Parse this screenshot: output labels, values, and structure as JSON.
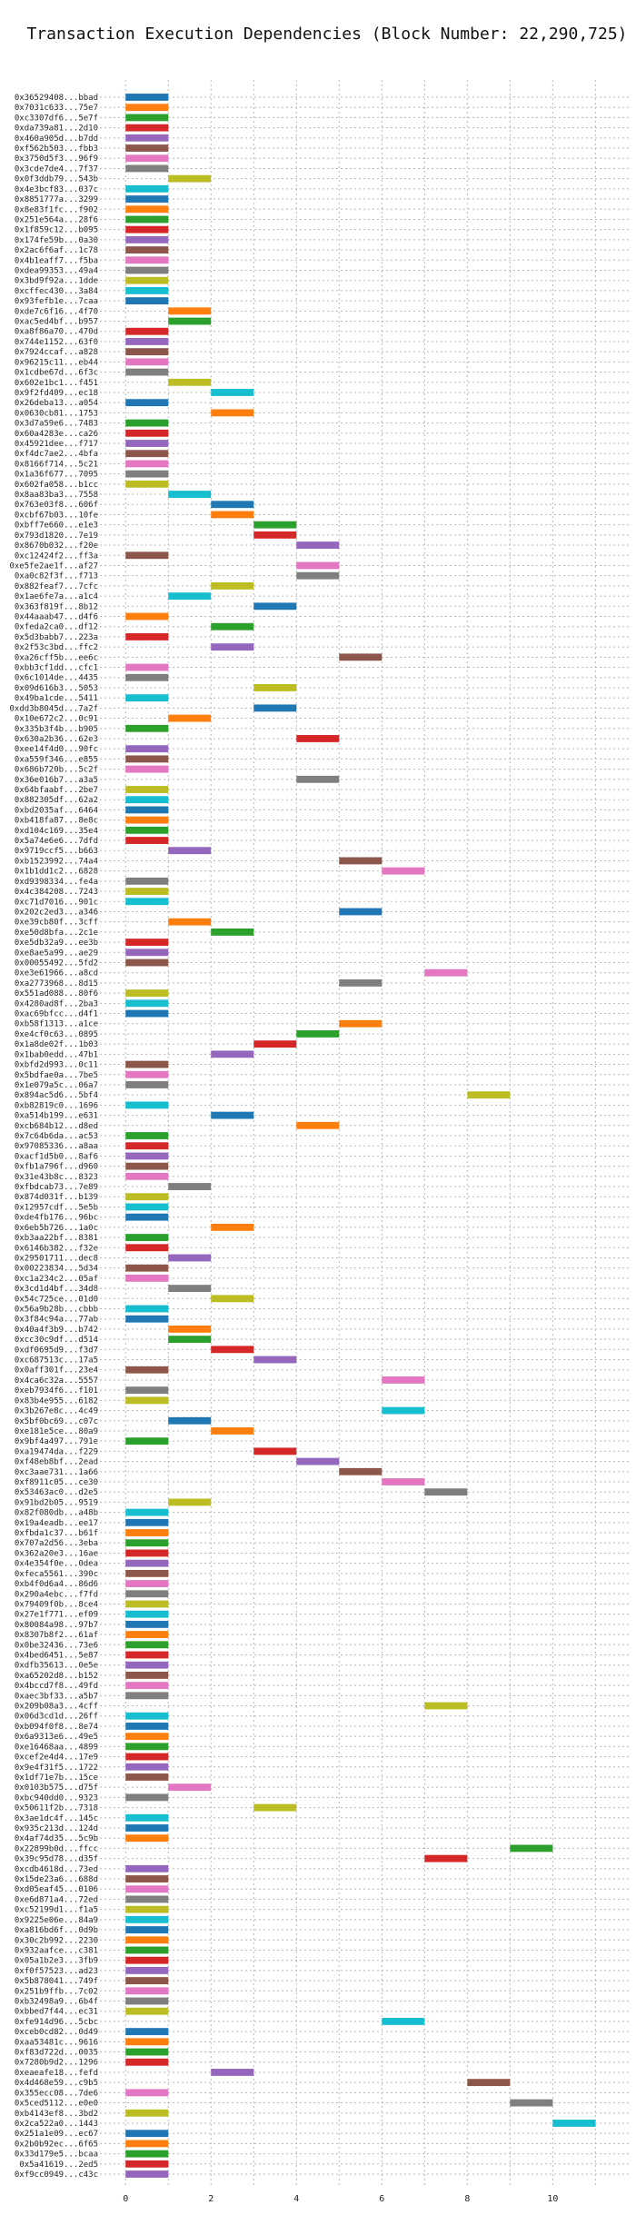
{
  "chart_data": {
    "type": "bar",
    "orientation": "horizontal-gantt",
    "title": "Transaction Execution Dependencies (Block Number: 22,290,725)",
    "xlabel": "",
    "ylabel": "",
    "xlim": [
      -0.6,
      11.8
    ],
    "xticks": [
      0,
      2,
      4,
      6,
      8,
      10
    ],
    "grid": "vertical dashed",
    "palette": [
      "#1f77b4",
      "#ff7f0e",
      "#2ca02c",
      "#d62728",
      "#9467bd",
      "#8c564b",
      "#e377c2",
      "#7f7f7f",
      "#bcbd22",
      "#17becf"
    ],
    "transactions": [
      [
        "0x36529408...bbad",
        0
      ],
      [
        "0x7031c633...75e7",
        0
      ],
      [
        "0xc3307df6...5e7f",
        0
      ],
      [
        "0xda739a81...2d10",
        0
      ],
      [
        "0x460a905d...b7dd",
        0
      ],
      [
        "0xf562b503...fbb3",
        0
      ],
      [
        "0x3750d5f3...96f9",
        0
      ],
      [
        "0x3cde7de4...7f37",
        0
      ],
      [
        "0x0f3ddb79...543b",
        1
      ],
      [
        "0x4e3bcf83...037c",
        0
      ],
      [
        "0x8851777a...3299",
        0
      ],
      [
        "0x8e83f1fc...f902",
        0
      ],
      [
        "0x251e564a...28f6",
        0
      ],
      [
        "0x1f859c12...b095",
        0
      ],
      [
        "0x174fe59b...0a30",
        0
      ],
      [
        "0x2ac6f6af...1c78",
        0
      ],
      [
        "0x4b1eaff7...f5ba",
        0
      ],
      [
        "0xdea99353...49a4",
        0
      ],
      [
        "0x3bd9f92a...1dde",
        0
      ],
      [
        "0xcffec430...3a84",
        0
      ],
      [
        "0x93fefb1e...7caa",
        0
      ],
      [
        "0xde7c6f16...4f70",
        1
      ],
      [
        "0xac5ed4bf...b957",
        1
      ],
      [
        "0xa8f86a70...470d",
        0
      ],
      [
        "0x744e1152...63f0",
        0
      ],
      [
        "0x7924ccaf...a828",
        0
      ],
      [
        "0x96215c11...eb44",
        0
      ],
      [
        "0x1cdbe67d...6f3c",
        0
      ],
      [
        "0x602e1bc1...f451",
        1
      ],
      [
        "0x9f2fd409...ec18",
        2
      ],
      [
        "0x26deba13...a054",
        0
      ],
      [
        "0x0630cb81...1753",
        2
      ],
      [
        "0x3d7a59e6...7483",
        0
      ],
      [
        "0x60a4283e...ca26",
        0
      ],
      [
        "0x45921dee...f717",
        0
      ],
      [
        "0xf4dc7ae2...4bfa",
        0
      ],
      [
        "0x8166f714...5c21",
        0
      ],
      [
        "0x1a36f677...7095",
        0
      ],
      [
        "0x602fa058...b1cc",
        0
      ],
      [
        "0x8aa83ba3...7558",
        1
      ],
      [
        "0x763e03f8...606f",
        2
      ],
      [
        "0xcbf67b03...10fe",
        2
      ],
      [
        "0xbff7e660...e1e3",
        3
      ],
      [
        "0x793d1820...7e19",
        3
      ],
      [
        "0x8670b032...f20e",
        4
      ],
      [
        "0xc12424f2...ff3a",
        0
      ],
      [
        "0xe5fe2ae1f...af27",
        4
      ],
      [
        "0xa0c82f3f...f713",
        4
      ],
      [
        "0x882feaf7...7cfc",
        2
      ],
      [
        "0x1ae6fe7a...a1c4",
        1
      ],
      [
        "0x363f819f...8b12",
        3
      ],
      [
        "0x44aaab47...d4f6",
        0
      ],
      [
        "0xfeda2ca0...df12",
        2
      ],
      [
        "0x5d3babb7...223a",
        0
      ],
      [
        "0x2f53c3bd...ffc2",
        2
      ],
      [
        "0xa26cff5b...ee6c",
        5
      ],
      [
        "0xbb3cf1dd...cfc1",
        0
      ],
      [
        "0x6c1014de...4435",
        0
      ],
      [
        "0x09d616b3...5053",
        3
      ],
      [
        "0x49ba1cde...5411",
        0
      ],
      [
        "0xdd3b8045d...7a2f",
        3
      ],
      [
        "0x10e672c2...0c91",
        1
      ],
      [
        "0x335b3f4b...b905",
        0
      ],
      [
        "0x630a2b36...62e3",
        4
      ],
      [
        "0xee14f4d0...90fc",
        0
      ],
      [
        "0xa559f346...e855",
        0
      ],
      [
        "0x686b720b...5c2f",
        0
      ],
      [
        "0x36e016b7...a3a5",
        4
      ],
      [
        "0x64bfaabf...2be7",
        0
      ],
      [
        "0x882305df...62a2",
        0
      ],
      [
        "0xbd2035af...6464",
        0
      ],
      [
        "0xb418fa87...8e8c",
        0
      ],
      [
        "0xd104c169...35e4",
        0
      ],
      [
        "0x5a74e6e6...7dfd",
        0
      ],
      [
        "0x9719ccf5...b663",
        1
      ],
      [
        "0xb1523992...74a4",
        5
      ],
      [
        "0x1b1dd1c2...6828",
        6
      ],
      [
        "0xd9398334...fe4a",
        0
      ],
      [
        "0x4c384208...7243",
        0
      ],
      [
        "0xc71d7016...901c",
        0
      ],
      [
        "0x202c2ed3...a346",
        5
      ],
      [
        "0xe39cb80f...3cff",
        1
      ],
      [
        "0xe50d8bfa...2c1e",
        2
      ],
      [
        "0xe5db32a9...ee3b",
        0
      ],
      [
        "0xe8ae5a99...ae29",
        0
      ],
      [
        "0x00055492...5fd2",
        0
      ],
      [
        "0xe3e61966...a8cd",
        7
      ],
      [
        "0xa2773968...8d15",
        5
      ],
      [
        "0x551ad088...80f6",
        0
      ],
      [
        "0x4280ad8f...2ba3",
        0
      ],
      [
        "0xac69bfcc...d4f1",
        0
      ],
      [
        "0xb58f1313...a1ce",
        5
      ],
      [
        "0xe4cf0c63...0895",
        4
      ],
      [
        "0x1a8de02f...1b03",
        3
      ],
      [
        "0x1bab0edd...47b1",
        2
      ],
      [
        "0xbfd2d993...0c11",
        0
      ],
      [
        "0x5bdfae0a...7be5",
        0
      ],
      [
        "0x1e079a5c...06a7",
        0
      ],
      [
        "0x894ac5d6...5bf4",
        8
      ],
      [
        "0xb82819c0...1696",
        0
      ],
      [
        "0xa514b199...e631",
        2
      ],
      [
        "0xcb684b12...d8ed",
        4
      ],
      [
        "0x7c64b6da...ac53",
        0
      ],
      [
        "0x97085336...a8aa",
        0
      ],
      [
        "0xacf1d5b0...8af6",
        0
      ],
      [
        "0xfb1a796f...d960",
        0
      ],
      [
        "0x31e43b8c...8323",
        0
      ],
      [
        "0xfbdcab73...7e89",
        1
      ],
      [
        "0x874d031f...b139",
        0
      ],
      [
        "0x12957cdf...5e5b",
        0
      ],
      [
        "0xde4fb176...96bc",
        0
      ],
      [
        "0x6eb5b726...1a0c",
        2
      ],
      [
        "0xb3aa22bf...8381",
        0
      ],
      [
        "0x6146b382...f32e",
        0
      ],
      [
        "0x29501711...dec8",
        1
      ],
      [
        "0x00223834...5d34",
        0
      ],
      [
        "0xc1a234c2...05af",
        0
      ],
      [
        "0x3cd1d4bf...34d8",
        1
      ],
      [
        "0x54c725ce...01d0",
        2
      ],
      [
        "0x56a9b28b...cbbb",
        0
      ],
      [
        "0x3f84c94a...77ab",
        0
      ],
      [
        "0x40a4f3b9...b742",
        1
      ],
      [
        "0xcc30c9df...d514",
        1
      ],
      [
        "0xdf0695d9...f3d7",
        2
      ],
      [
        "0xc687513c...17a5",
        3
      ],
      [
        "0x0aff301f...23e4",
        0
      ],
      [
        "0x4ca6c32a...5557",
        6
      ],
      [
        "0xeb7934f6...f101",
        0
      ],
      [
        "0x83b4e955...6182",
        0
      ],
      [
        "0x3b267e8c...4c49",
        6
      ],
      [
        "0x5bf0bc69...c07c",
        1
      ],
      [
        "0xe181e5ce...80a9",
        2
      ],
      [
        "0x9bf4a497...791e",
        0
      ],
      [
        "0xa19474da...f229",
        3
      ],
      [
        "0xf48eb8bf...2ead",
        4
      ],
      [
        "0xc3aae731...1a66",
        5
      ],
      [
        "0xf8911c05...ce30",
        6
      ],
      [
        "0x53463ac0...d2e5",
        7
      ],
      [
        "0x91bd2b05...9519",
        1
      ],
      [
        "0x82f080db...a48b",
        0
      ],
      [
        "0x19a4eadb...ee17",
        0
      ],
      [
        "0xfbda1c37...b61f",
        0
      ],
      [
        "0x707a2d56...3eba",
        0
      ],
      [
        "0x362a20e3...16ae",
        0
      ],
      [
        "0x4e354f0e...0dea",
        0
      ],
      [
        "0xfeca5561...390c",
        0
      ],
      [
        "0xb4f0d6a4...86d6",
        0
      ],
      [
        "0x290a4ebc...f7fd",
        0
      ],
      [
        "0x79409f0b...8ce4",
        0
      ],
      [
        "0x27e1f771...ef09",
        0
      ],
      [
        "0x80084a98...97b7",
        0
      ],
      [
        "0x8307b8f2...61af",
        0
      ],
      [
        "0x0be32436...73e6",
        0
      ],
      [
        "0x4bed6451...5e87",
        0
      ],
      [
        "0xdfb35613...0e5e",
        0
      ],
      [
        "0xa65202d8...b152",
        0
      ],
      [
        "0x4bccd7f8...49fd",
        0
      ],
      [
        "0xaec3bf33...a5b7",
        0
      ],
      [
        "0x209b08a3...4cff",
        7
      ],
      [
        "0x06d3cd1d...26ff",
        0
      ],
      [
        "0xb094f0f8...8e74",
        0
      ],
      [
        "0x6a9313e6...49e5",
        0
      ],
      [
        "0xe16468aa...4899",
        0
      ],
      [
        "0xcef2e4d4...17e9",
        0
      ],
      [
        "0x9e4f31f5...1722",
        0
      ],
      [
        "0x1df71e7b...15ce",
        0
      ],
      [
        "0x0103b575...d75f",
        1
      ],
      [
        "0xbc940dd0...9323",
        0
      ],
      [
        "0x50611f2b...7318",
        3
      ],
      [
        "0x3ae1dc4f...145c",
        0
      ],
      [
        "0x935c213d...124d",
        0
      ],
      [
        "0x4af74d35...5c9b",
        0
      ],
      [
        "0x22899b0d...ffcc",
        9
      ],
      [
        "0x39c95d78...d35f",
        7
      ],
      [
        "0xcdb4618d...73ed",
        0
      ],
      [
        "0x15de23a6...688d",
        0
      ],
      [
        "0xd05eaf45...0106",
        0
      ],
      [
        "0xe6d871a4...72ed",
        0
      ],
      [
        "0xc52199d1...f1a5",
        0
      ],
      [
        "0x9225e06e...84a9",
        0
      ],
      [
        "0xa816bd6f...0d9b",
        0
      ],
      [
        "0x30c2b992...2230",
        0
      ],
      [
        "0x932aafce...c381",
        0
      ],
      [
        "0x05a1b2e3...3fb9",
        0
      ],
      [
        "0xf0f57523...ad23",
        0
      ],
      [
        "0x5b878041...749f",
        0
      ],
      [
        "0x251b9ffb...7c02",
        0
      ],
      [
        "0xb32498a9...6b4f",
        0
      ],
      [
        "0xbbed7f44...ec31",
        0
      ],
      [
        "0xfe914d96...5cbc",
        6
      ],
      [
        "0xceb0cd82...0d49",
        0
      ],
      [
        "0xaa53481c...9616",
        0
      ],
      [
        "0xf83d722d...0035",
        0
      ],
      [
        "0x7280b9d2...1296",
        0
      ],
      [
        "0xeaeafe18...fefd",
        2
      ],
      [
        "0x4d468e59...c9b5",
        8
      ],
      [
        "0x355ecc08...7de6",
        0
      ],
      [
        "0x5ced5112...e0e0",
        9
      ],
      [
        "0xb4143ef8...3bd2",
        0
      ],
      [
        "0x2ca522a0...1443",
        10
      ],
      [
        "0x251a1e09...ec67",
        0
      ],
      [
        "0x2b0b92ec...6f65",
        0
      ],
      [
        "0x33d179e5...bcaa",
        0
      ],
      [
        "0x5a41619...2ed5",
        0
      ],
      [
        "0xf9cc0949...c43c",
        0
      ]
    ]
  }
}
